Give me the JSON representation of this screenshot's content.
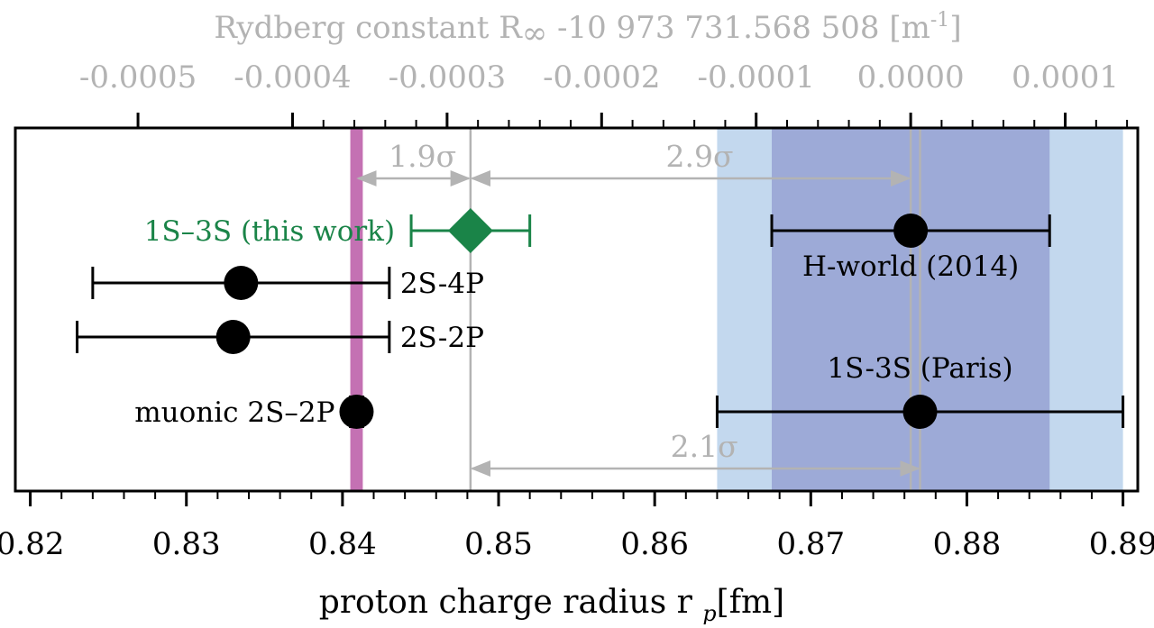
{
  "colors": {
    "grey": "#b3b3b3",
    "green": "#1a8448",
    "black": "#000000",
    "muonic_band": "#c471b3",
    "band_outer": "#c3d8ee",
    "band_inner": "#9daad7",
    "axis": "#000000"
  },
  "chart_data": {
    "type": "scatter",
    "xlabel": "proton charge radius r",
    "xlabel_sub": "p",
    "xlabel_unit": "[fm]",
    "top_axis_label": "Rydberg constant R",
    "top_axis_label_sub": "∞",
    "top_axis_label_rest": " -10 973 731.568 508 [m",
    "top_axis_label_sup": "-1",
    "top_axis_label_end": "]",
    "xlim": [
      0.8195,
      0.8903
    ],
    "x_ticks": [
      0.82,
      0.83,
      0.84,
      0.85,
      0.86,
      0.87,
      0.88,
      0.89
    ],
    "x_tick_labels": [
      "0.82",
      "0.83",
      "0.84",
      "0.85",
      "0.86",
      "0.87",
      "0.88",
      "0.89"
    ],
    "top_ticks": [
      {
        "r": 0.8269,
        "label": "-0.0005"
      },
      {
        "r": 0.8368,
        "label": "-0.0004"
      },
      {
        "r": 0.8467,
        "label": "-0.0003"
      },
      {
        "r": 0.8566,
        "label": "-0.0002"
      },
      {
        "r": 0.8665,
        "label": "-0.0001"
      },
      {
        "r": 0.8764,
        "label": "0.0000"
      },
      {
        "r": 0.8863,
        "label": "0.0001"
      }
    ],
    "points": [
      {
        "name": "1S–3S (this work)",
        "x": 0.8482,
        "xerr": 0.0038,
        "row": 1,
        "marker": "diamond",
        "color": "green",
        "label_side": "left"
      },
      {
        "name": "2S-4P",
        "x": 0.8335,
        "xerr": 0.0095,
        "row": 2,
        "marker": "circle",
        "color": "black",
        "label_side": "right"
      },
      {
        "name": "2S-2P",
        "x": 0.833,
        "xerr": 0.01,
        "row": 3,
        "marker": "circle",
        "color": "black",
        "label_side": "right"
      },
      {
        "name": "muonic 2S–2P",
        "x": 0.8409,
        "xerr": 0.0004,
        "row": 4,
        "marker": "circle",
        "color": "black",
        "label_side": "left"
      },
      {
        "name": "H-world (2014)",
        "x": 0.8764,
        "xerr": 0.0089,
        "row": 1,
        "marker": "circle",
        "color": "black",
        "label_side": "below"
      },
      {
        "name": "1S-3S (Paris)",
        "x": 0.877,
        "xerr": 0.013,
        "row": 4,
        "marker": "circle",
        "color": "black",
        "label_side": "above"
      }
    ],
    "bands": [
      {
        "from": 0.864,
        "to": 0.89,
        "color": "band_outer"
      },
      {
        "from": 0.8675,
        "to": 0.8853,
        "color": "band_inner"
      },
      {
        "from": 0.8405,
        "to": 0.8413,
        "color": "muonic_band"
      }
    ],
    "vlines": [
      {
        "x": 0.8482,
        "color": "grey"
      },
      {
        "x": 0.8764,
        "color": "grey"
      },
      {
        "x": 0.877,
        "color": "grey"
      }
    ],
    "annotations": [
      {
        "text": "1.9σ",
        "from": 0.8409,
        "to": 0.8482,
        "row": 0
      },
      {
        "text": "2.9σ",
        "from": 0.8482,
        "to": 0.8764,
        "row": 0
      },
      {
        "text": "2.1σ",
        "from": 0.8482,
        "to": 0.877,
        "row": 5
      }
    ],
    "grid": false,
    "legend": "none"
  }
}
